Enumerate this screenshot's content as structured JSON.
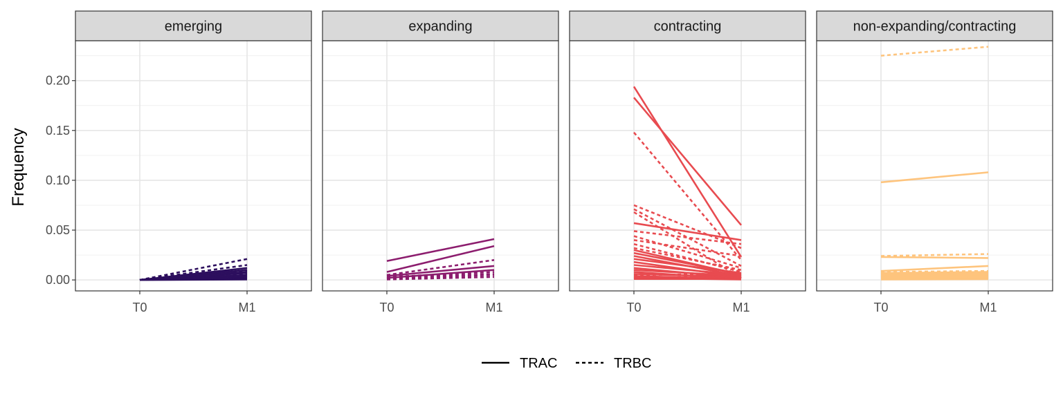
{
  "chart_data": {
    "type": "line",
    "facet_by": "clone_category",
    "x_categories": [
      "T0",
      "M1"
    ],
    "ylabel": "Frequency",
    "xlabel": "",
    "ylim": [
      -0.011,
      0.24
    ],
    "y_ticks": [
      0.0,
      0.05,
      0.1,
      0.15,
      0.2
    ],
    "y_tick_labels": [
      "0.00",
      "0.05",
      "0.10",
      "0.15",
      "0.20"
    ],
    "grid": true,
    "legend": {
      "position": "bottom",
      "entries": [
        {
          "label": "TRAC",
          "linetype": "solid"
        },
        {
          "label": "TRBC",
          "linetype": "dashed"
        }
      ]
    },
    "facets": [
      {
        "label": "emerging",
        "color": "#2D0F5E",
        "series": [
          {
            "chain": "TRBC",
            "values": [
              0.0,
              0.021
            ]
          },
          {
            "chain": "TRBC",
            "values": [
              0.0,
              0.015
            ]
          },
          {
            "chain": "TRAC",
            "values": [
              0.0,
              0.012
            ]
          },
          {
            "chain": "TRAC",
            "values": [
              0.0,
              0.01
            ]
          },
          {
            "chain": "TRBC",
            "values": [
              0.0,
              0.009
            ]
          },
          {
            "chain": "TRAC",
            "values": [
              0.0,
              0.008
            ]
          },
          {
            "chain": "TRAC",
            "values": [
              0.0,
              0.007
            ]
          },
          {
            "chain": "TRBC",
            "values": [
              0.0,
              0.006
            ]
          },
          {
            "chain": "TRAC",
            "values": [
              0.0,
              0.005
            ]
          },
          {
            "chain": "TRAC",
            "values": [
              0.0,
              0.004
            ]
          },
          {
            "chain": "TRBC",
            "values": [
              0.0,
              0.004
            ]
          },
          {
            "chain": "TRAC",
            "values": [
              0.0,
              0.003
            ]
          },
          {
            "chain": "TRAC",
            "values": [
              0.0,
              0.002
            ]
          },
          {
            "chain": "TRBC",
            "values": [
              0.0,
              0.002
            ]
          },
          {
            "chain": "TRAC",
            "values": [
              0.0,
              0.001
            ]
          },
          {
            "chain": "TRAC",
            "values": [
              0.0,
              0.0005
            ]
          }
        ]
      },
      {
        "label": "expanding",
        "color": "#8C1D6E",
        "series": [
          {
            "chain": "TRAC",
            "values": [
              0.019,
              0.041
            ]
          },
          {
            "chain": "TRAC",
            "values": [
              0.008,
              0.034
            ]
          },
          {
            "chain": "TRBC",
            "values": [
              0.005,
              0.02
            ]
          },
          {
            "chain": "TRAC",
            "values": [
              0.004,
              0.014
            ]
          },
          {
            "chain": "TRAC",
            "values": [
              0.002,
              0.01
            ]
          },
          {
            "chain": "TRBC",
            "values": [
              0.003,
              0.008
            ]
          },
          {
            "chain": "TRBC",
            "values": [
              0.002,
              0.006
            ]
          },
          {
            "chain": "TRBC",
            "values": [
              0.001,
              0.005
            ]
          },
          {
            "chain": "TRBC",
            "values": [
              0.0005,
              0.003
            ]
          }
        ]
      },
      {
        "label": "contracting",
        "color": "#E84B50",
        "series": [
          {
            "chain": "TRAC",
            "values": [
              0.194,
              0.023
            ]
          },
          {
            "chain": "TRAC",
            "values": [
              0.183,
              0.055
            ]
          },
          {
            "chain": "TRBC",
            "values": [
              0.148,
              0.02
            ]
          },
          {
            "chain": "TRBC",
            "values": [
              0.075,
              0.032
            ]
          },
          {
            "chain": "TRBC",
            "values": [
              0.071,
              0.014
            ]
          },
          {
            "chain": "TRBC",
            "values": [
              0.068,
              0.002
            ]
          },
          {
            "chain": "TRAC",
            "values": [
              0.057,
              0.04
            ]
          },
          {
            "chain": "TRBC",
            "values": [
              0.049,
              0.036
            ]
          },
          {
            "chain": "TRBC",
            "values": [
              0.044,
              0.012
            ]
          },
          {
            "chain": "TRBC",
            "values": [
              0.04,
              0.024
            ]
          },
          {
            "chain": "TRBC",
            "values": [
              0.036,
              0.008
            ]
          },
          {
            "chain": "TRBC",
            "values": [
              0.032,
              0.01
            ]
          },
          {
            "chain": "TRAC",
            "values": [
              0.03,
              0.005
            ]
          },
          {
            "chain": "TRAC",
            "values": [
              0.027,
              0.006
            ]
          },
          {
            "chain": "TRAC",
            "values": [
              0.024,
              0.004
            ]
          },
          {
            "chain": "TRAC",
            "values": [
              0.021,
              0.007
            ]
          },
          {
            "chain": "TRAC",
            "values": [
              0.018,
              0.003
            ]
          },
          {
            "chain": "TRAC",
            "values": [
              0.015,
              0.005
            ]
          },
          {
            "chain": "TRAC",
            "values": [
              0.012,
              0.002
            ]
          },
          {
            "chain": "TRAC",
            "values": [
              0.01,
              0.004
            ]
          },
          {
            "chain": "TRAC",
            "values": [
              0.008,
              0.001
            ]
          },
          {
            "chain": "TRAC",
            "values": [
              0.006,
              0.003
            ]
          },
          {
            "chain": "TRAC",
            "values": [
              0.004,
              0.001
            ]
          },
          {
            "chain": "TRAC",
            "values": [
              0.003,
              0.002
            ]
          },
          {
            "chain": "TRAC",
            "values": [
              0.002,
              0.0005
            ]
          },
          {
            "chain": "TRAC",
            "values": [
              0.001,
              0.001
            ]
          },
          {
            "chain": "TRBC",
            "values": [
              0.005,
              0.006
            ]
          },
          {
            "chain": "TRBC",
            "values": [
              0.002,
              0.004
            ]
          },
          {
            "chain": "TRBC",
            "values": [
              0.001,
              0.002
            ]
          }
        ]
      },
      {
        "label": "non-expanding/contracting",
        "color": "#FEC47D",
        "series": [
          {
            "chain": "TRBC",
            "values": [
              0.225,
              0.234
            ]
          },
          {
            "chain": "TRAC",
            "values": [
              0.098,
              0.108
            ]
          },
          {
            "chain": "TRBC",
            "values": [
              0.024,
              0.026
            ]
          },
          {
            "chain": "TRAC",
            "values": [
              0.023,
              0.022
            ]
          },
          {
            "chain": "TRAC",
            "values": [
              0.009,
              0.014
            ]
          },
          {
            "chain": "TRBC",
            "values": [
              0.008,
              0.009
            ]
          },
          {
            "chain": "TRAC",
            "values": [
              0.007,
              0.008
            ]
          },
          {
            "chain": "TRAC",
            "values": [
              0.006,
              0.007
            ]
          },
          {
            "chain": "TRAC",
            "values": [
              0.005,
              0.006
            ]
          },
          {
            "chain": "TRAC",
            "values": [
              0.004,
              0.005
            ]
          },
          {
            "chain": "TRAC",
            "values": [
              0.003,
              0.004
            ]
          },
          {
            "chain": "TRAC",
            "values": [
              0.002,
              0.003
            ]
          },
          {
            "chain": "TRAC",
            "values": [
              0.001,
              0.002
            ]
          },
          {
            "chain": "TRBC",
            "values": [
              0.003,
              0.003
            ]
          },
          {
            "chain": "TRBC",
            "values": [
              0.001,
              0.001
            ]
          },
          {
            "chain": "TRAC",
            "values": [
              0.0005,
              0.0008
            ]
          }
        ]
      }
    ]
  }
}
